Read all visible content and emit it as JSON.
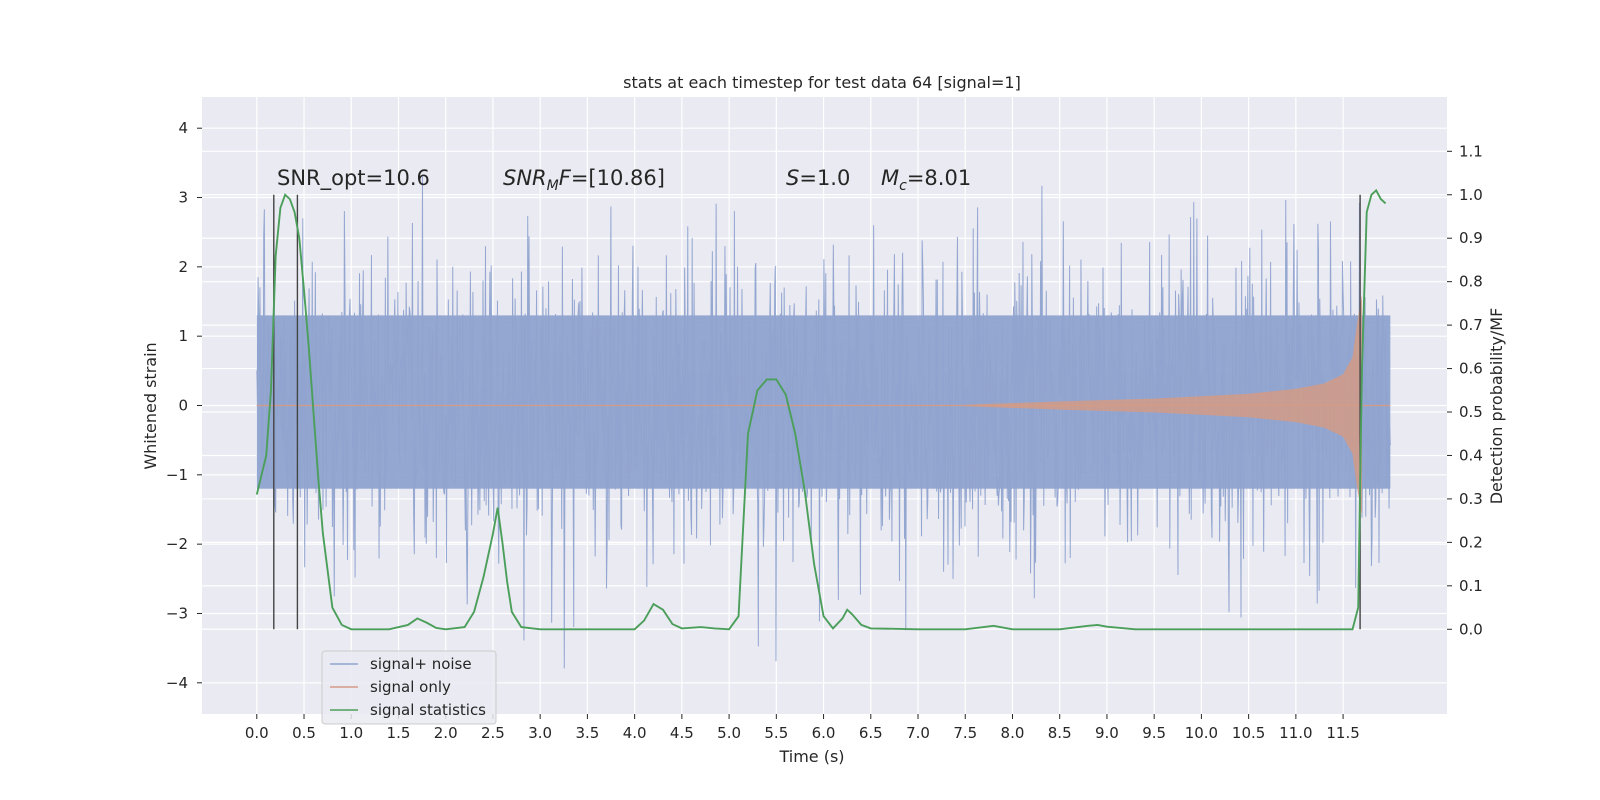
{
  "chart_data": {
    "type": "line",
    "title": "stats at each timestep for test data 64 [signal=1]",
    "xlabel": "Time (s)",
    "ylabel": "Whitened strain",
    "ylabel_right": "Detection probability/MF",
    "xlim": [
      -0.58,
      12.6
    ],
    "ylim": [
      -4.45,
      4.45
    ],
    "ylim_right": [
      -0.195,
      1.225
    ],
    "x_ticks": [
      "0.0",
      "0.5",
      "1.0",
      "1.5",
      "2.0",
      "2.5",
      "3.0",
      "3.5",
      "4.0",
      "4.5",
      "5.0",
      "5.5",
      "6.0",
      "6.5",
      "7.0",
      "7.5",
      "8.0",
      "8.5",
      "9.0",
      "9.5",
      "10.0",
      "10.5",
      "11.0",
      "11.5"
    ],
    "y_ticks_left": [
      "4",
      "3",
      "2",
      "1",
      "0",
      "−1",
      "−2",
      "−3",
      "−4"
    ],
    "y_ticks_right": [
      "1.1",
      "1.0",
      "0.9",
      "0.8",
      "0.7",
      "0.6",
      "0.5",
      "0.4",
      "0.3",
      "0.2",
      "0.1",
      "0.0"
    ],
    "grid": true,
    "legend_position": "lower-left",
    "annotations": {
      "snr_opt": "SNR_opt=10.6",
      "snr_mf_symbol": "SNR",
      "snr_mf_sub": "M",
      "snr_mf_f": "F",
      "snr_mf_value": "=[10.86]",
      "s_symbol": "S",
      "s_value": "=1.0",
      "mc_symbol": "M",
      "mc_sub": "c",
      "mc_value": "=8.01"
    },
    "markers_x": [
      0.18,
      0.43,
      11.68
    ],
    "series": [
      {
        "name": "signal+ noise",
        "color": "#8fa3cf",
        "axis": "left",
        "description_values": "white noise, std ~1, range approx -4 to 4, t 0 to 12 s"
      },
      {
        "name": "signal only",
        "color": "#d49b86",
        "axis": "left",
        "envelope": {
          "x": [
            7.5,
            8.5,
            9.5,
            10.5,
            11.0,
            11.3,
            11.5,
            11.6,
            11.65,
            11.7
          ],
          "amp": [
            0.01,
            0.06,
            0.1,
            0.17,
            0.24,
            0.32,
            0.45,
            0.7,
            1.2,
            1.6
          ]
        }
      },
      {
        "name": "signal statistics",
        "color": "#4c9f5b",
        "axis": "right",
        "x": [
          0.0,
          0.1,
          0.15,
          0.2,
          0.25,
          0.3,
          0.35,
          0.4,
          0.45,
          0.5,
          0.55,
          0.6,
          0.65,
          0.7,
          0.8,
          0.9,
          1.0,
          1.2,
          1.4,
          1.6,
          1.7,
          1.8,
          1.9,
          2.0,
          2.2,
          2.3,
          2.4,
          2.5,
          2.55,
          2.6,
          2.65,
          2.7,
          2.8,
          3.0,
          3.5,
          4.0,
          4.1,
          4.2,
          4.3,
          4.4,
          4.5,
          4.7,
          4.85,
          5.0,
          5.1,
          5.2,
          5.3,
          5.4,
          5.5,
          5.6,
          5.7,
          5.8,
          5.9,
          6.0,
          6.1,
          6.2,
          6.25,
          6.3,
          6.4,
          6.5,
          7.0,
          7.5,
          7.8,
          8.0,
          8.5,
          8.8,
          8.9,
          9.0,
          9.3,
          9.5,
          10.0,
          10.5,
          11.0,
          11.5,
          11.6,
          11.66,
          11.7,
          11.75,
          11.8,
          11.85,
          11.9,
          11.95
        ],
        "y": [
          0.31,
          0.4,
          0.55,
          0.86,
          0.97,
          1.0,
          0.99,
          0.96,
          0.9,
          0.78,
          0.65,
          0.5,
          0.35,
          0.22,
          0.05,
          0.01,
          0.0,
          0.0,
          0.0,
          0.01,
          0.025,
          0.015,
          0.003,
          0.0,
          0.005,
          0.04,
          0.12,
          0.22,
          0.28,
          0.2,
          0.11,
          0.04,
          0.005,
          0.0,
          0.0,
          0.0,
          0.02,
          0.058,
          0.045,
          0.012,
          0.002,
          0.005,
          0.002,
          0.0,
          0.03,
          0.45,
          0.55,
          0.575,
          0.575,
          0.54,
          0.45,
          0.32,
          0.15,
          0.03,
          0.002,
          0.025,
          0.045,
          0.035,
          0.01,
          0.002,
          0.0,
          0.0,
          0.008,
          0.0,
          0.0,
          0.008,
          0.01,
          0.006,
          0.0,
          0.0,
          0.0,
          0.0,
          0.0,
          0.0,
          0.0,
          0.05,
          0.6,
          0.96,
          1.0,
          1.01,
          0.99,
          0.98
        ]
      }
    ]
  }
}
